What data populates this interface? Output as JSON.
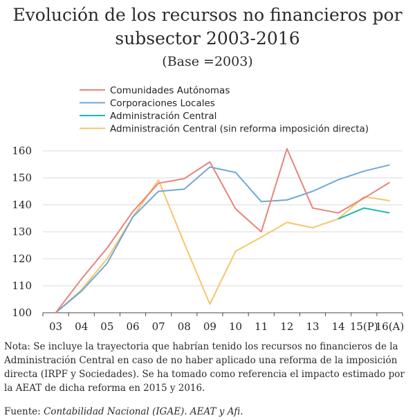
{
  "title_line1": "Evolución de los recursos no financieros por",
  "title_line2": "subsector 2003-2016",
  "subtitle": "(Base =2003)",
  "note": "Nota: Se incluye la trayectoria que habrían tenido los recursos no financieros de la Administración Central en caso de no haber aplicado una reforma de la imposición directa (IRPF y Sociedades). Se ha tomado como referencia el impacto estimado por la AEAT de dicha reforma en 2015 y 2016.",
  "source_label": "Fuente: ",
  "source_italic": "Contabilidad Nacional (IGAE). AEAT y Afi.",
  "chart_data": {
    "type": "line",
    "categories": [
      "03",
      "04",
      "05",
      "06",
      "07",
      "08",
      "09",
      "10",
      "11",
      "12",
      "13",
      "14",
      "15(P)",
      "16(A)"
    ],
    "ylim": [
      100,
      160
    ],
    "yticks": [
      100,
      110,
      120,
      130,
      140,
      150,
      160
    ],
    "grid": true,
    "legend_position": "top",
    "series": [
      {
        "name": "Comunidades Autónomas",
        "color": "#e8837a",
        "values": [
          100,
          112.5,
          124,
          137.5,
          148,
          149.7,
          155.9,
          138.5,
          130,
          160.8,
          138.8,
          137,
          142.5,
          148.3
        ]
      },
      {
        "name": "Corporaciones Locales",
        "color": "#6fa8d6",
        "values": [
          100,
          108,
          118.3,
          135.5,
          145,
          145.8,
          154,
          152,
          141.2,
          141.8,
          145,
          149.3,
          152.5,
          154.8
        ]
      },
      {
        "name": "Administración Central",
        "color": "#1ab8b0",
        "values": [
          null,
          null,
          null,
          null,
          null,
          null,
          null,
          null,
          null,
          null,
          null,
          134.8,
          138.8,
          137
        ]
      },
      {
        "name": "Administración Central (sin reforma imposición directa)",
        "color": "#f5c56b",
        "values": [
          100,
          108.5,
          120,
          135.5,
          149.2,
          125.8,
          103.2,
          122.8,
          128,
          133.5,
          131.5,
          134.8,
          143,
          141.5
        ]
      }
    ]
  }
}
